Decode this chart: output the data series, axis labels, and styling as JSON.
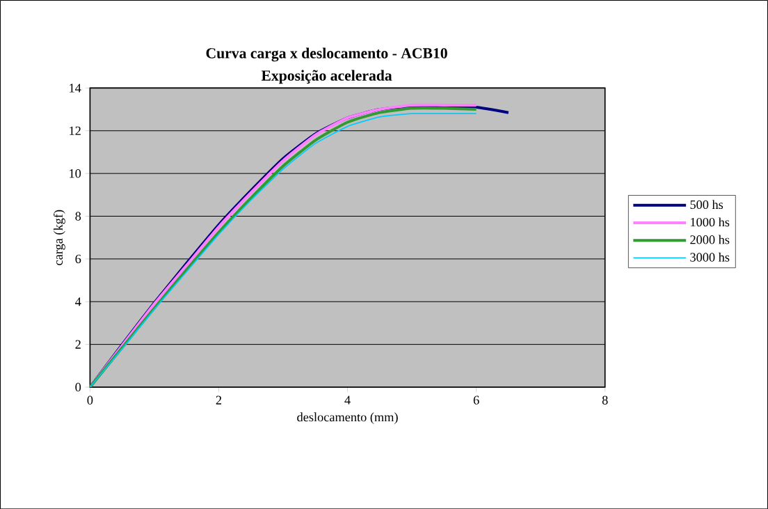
{
  "chart_data": {
    "type": "line",
    "title": "Curva carga x deslocamento - ACB10",
    "subtitle": "Exposição acelerada",
    "xlabel": "deslocamento (mm)",
    "ylabel": "carga (kgf)",
    "xlim": [
      0,
      8
    ],
    "ylim": [
      0,
      14
    ],
    "xticks": [
      0,
      2,
      4,
      6,
      8
    ],
    "yticks": [
      0,
      2,
      4,
      6,
      8,
      10,
      12,
      14
    ],
    "grid": "y",
    "legend": "right",
    "marker": "none",
    "line_style": "solid",
    "series": [
      {
        "name": "500 hs",
        "color": "#000080",
        "x": [
          0,
          0.5,
          1,
          1.5,
          2,
          2.5,
          3,
          3.5,
          4,
          4.5,
          5,
          5.5,
          6,
          6.5
        ],
        "values": [
          0,
          2.0,
          3.95,
          5.8,
          7.6,
          9.2,
          10.7,
          11.85,
          12.6,
          13.0,
          13.15,
          13.15,
          13.1,
          12.85
        ]
      },
      {
        "name": "1000 hs",
        "color": "#ff80ff",
        "x": [
          0,
          0.5,
          1,
          1.5,
          2,
          2.5,
          3,
          3.5,
          4,
          4.5,
          5,
          5.5,
          6
        ],
        "values": [
          0,
          1.95,
          3.9,
          5.7,
          7.5,
          9.1,
          10.6,
          11.8,
          12.6,
          13.0,
          13.2,
          13.2,
          13.2
        ]
      },
      {
        "name": "2000 hs",
        "color": "#339933",
        "x": [
          0,
          0.5,
          1,
          1.5,
          2,
          2.5,
          3,
          3.5,
          4,
          4.5,
          5,
          5.5,
          6
        ],
        "values": [
          0,
          1.85,
          3.7,
          5.5,
          7.25,
          8.85,
          10.35,
          11.55,
          12.4,
          12.85,
          13.05,
          13.05,
          13.0
        ]
      },
      {
        "name": "3000 hs",
        "color": "#00ccff",
        "x": [
          0,
          0.5,
          1,
          1.5,
          2,
          2.5,
          3,
          3.5,
          4,
          4.5,
          5,
          5.5,
          6
        ],
        "values": [
          0,
          1.8,
          3.65,
          5.4,
          7.15,
          8.75,
          10.2,
          11.4,
          12.2,
          12.65,
          12.8,
          12.8,
          12.8
        ]
      }
    ]
  }
}
